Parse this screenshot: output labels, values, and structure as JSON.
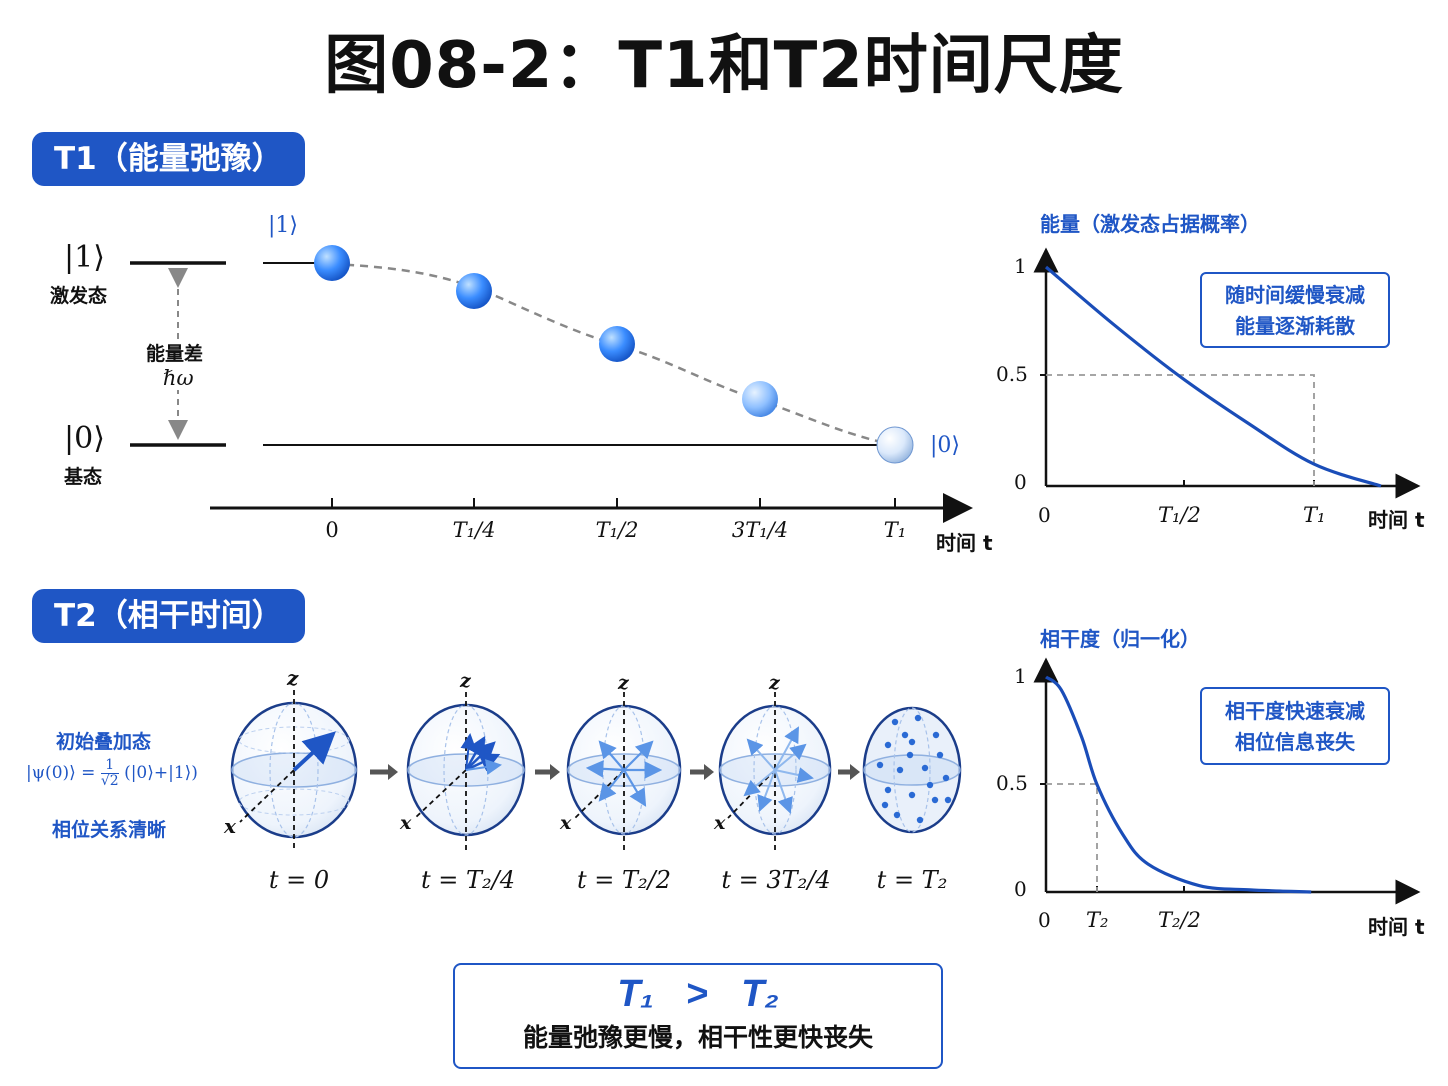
{
  "title": "图08-2：T1和T2时间尺度",
  "t1_section": {
    "heading": "T1（能量弛豫）",
    "excited_ket": "|1⟩",
    "excited_label": "激发态",
    "ground_ket": "|0⟩",
    "ground_label": "基态",
    "gap_label": "能量差",
    "gap_symbol": "ℏω",
    "start_ket": "|1⟩",
    "end_ket": "|0⟩",
    "ticks": [
      "0",
      "T₁/4",
      "T₁/2",
      "3T₁/4",
      "T₁"
    ],
    "axis_label": "时间 t"
  },
  "t1_chart": {
    "ylabel": "能量（激发态占据概率）",
    "xlabel": "时间 t",
    "callout": [
      "随时间缓慢衰减",
      "能量逐渐耗散"
    ]
  },
  "t2_section": {
    "heading": "T2（相干时间）",
    "initial_title": "初始叠加态",
    "initial_formula_left": "|ψ(0)⟩ =",
    "initial_formula_num": "1",
    "initial_formula_den": "√2",
    "initial_formula_right": "(|0⟩+|1⟩)",
    "initial_note": "相位关系清晰",
    "sphere_axis_z": "z",
    "sphere_axis_x": "x",
    "sphere_times": [
      "t = 0",
      "t = T₂/4",
      "t = T₂/2",
      "t = 3T₂/4",
      "t = T₂"
    ]
  },
  "t2_chart": {
    "ylabel": "相干度（归一化）",
    "xlabel": "时间 t",
    "callout": [
      "相干度快速衰减",
      "相位信息丧失"
    ]
  },
  "summary": {
    "relation_left": "T₁",
    "relation_op": ">",
    "relation_right": "T₂",
    "text": "能量弛豫更慢，相干性更快丧失"
  },
  "chart_data": [
    {
      "type": "line",
      "title": "能量（激发态占据概率）",
      "xlabel": "时间 t",
      "ylabel": "能量（激发态占据概率）",
      "x_ticks": [
        "0",
        "T₁/2",
        "T₁"
      ],
      "y_ticks": [
        "0",
        "0.5",
        "1"
      ],
      "ylim": [
        0,
        1
      ],
      "x": [
        0,
        0.25,
        0.5,
        0.75,
        1.0,
        1.25
      ],
      "y": [
        1.0,
        0.74,
        0.5,
        0.29,
        0.1,
        0.0
      ],
      "annotations": [
        "随时间缓慢衰减",
        "能量逐渐耗散"
      ],
      "grid": false
    },
    {
      "type": "line",
      "title": "相干度（归一化）",
      "xlabel": "时间 t",
      "ylabel": "相干度（归一化）",
      "x_ticks": [
        "0",
        "T₂",
        "T₂/2"
      ],
      "y_ticks": [
        "0",
        "0.5",
        "1"
      ],
      "ylim": [
        0,
        1
      ],
      "x": [
        0,
        0.3,
        0.7,
        1.0,
        1.5,
        2.0,
        3.0,
        4.0,
        5.2
      ],
      "y": [
        1.0,
        0.94,
        0.72,
        0.5,
        0.27,
        0.13,
        0.03,
        0.01,
        0.0
      ],
      "annotations": [
        "相干度快速衰减",
        "相位信息丧失"
      ],
      "grid": false
    }
  ],
  "colors": {
    "accent": "#1f56c5",
    "curve": "#1a4db8",
    "dashed": "#888888",
    "arrow": "#555555"
  }
}
